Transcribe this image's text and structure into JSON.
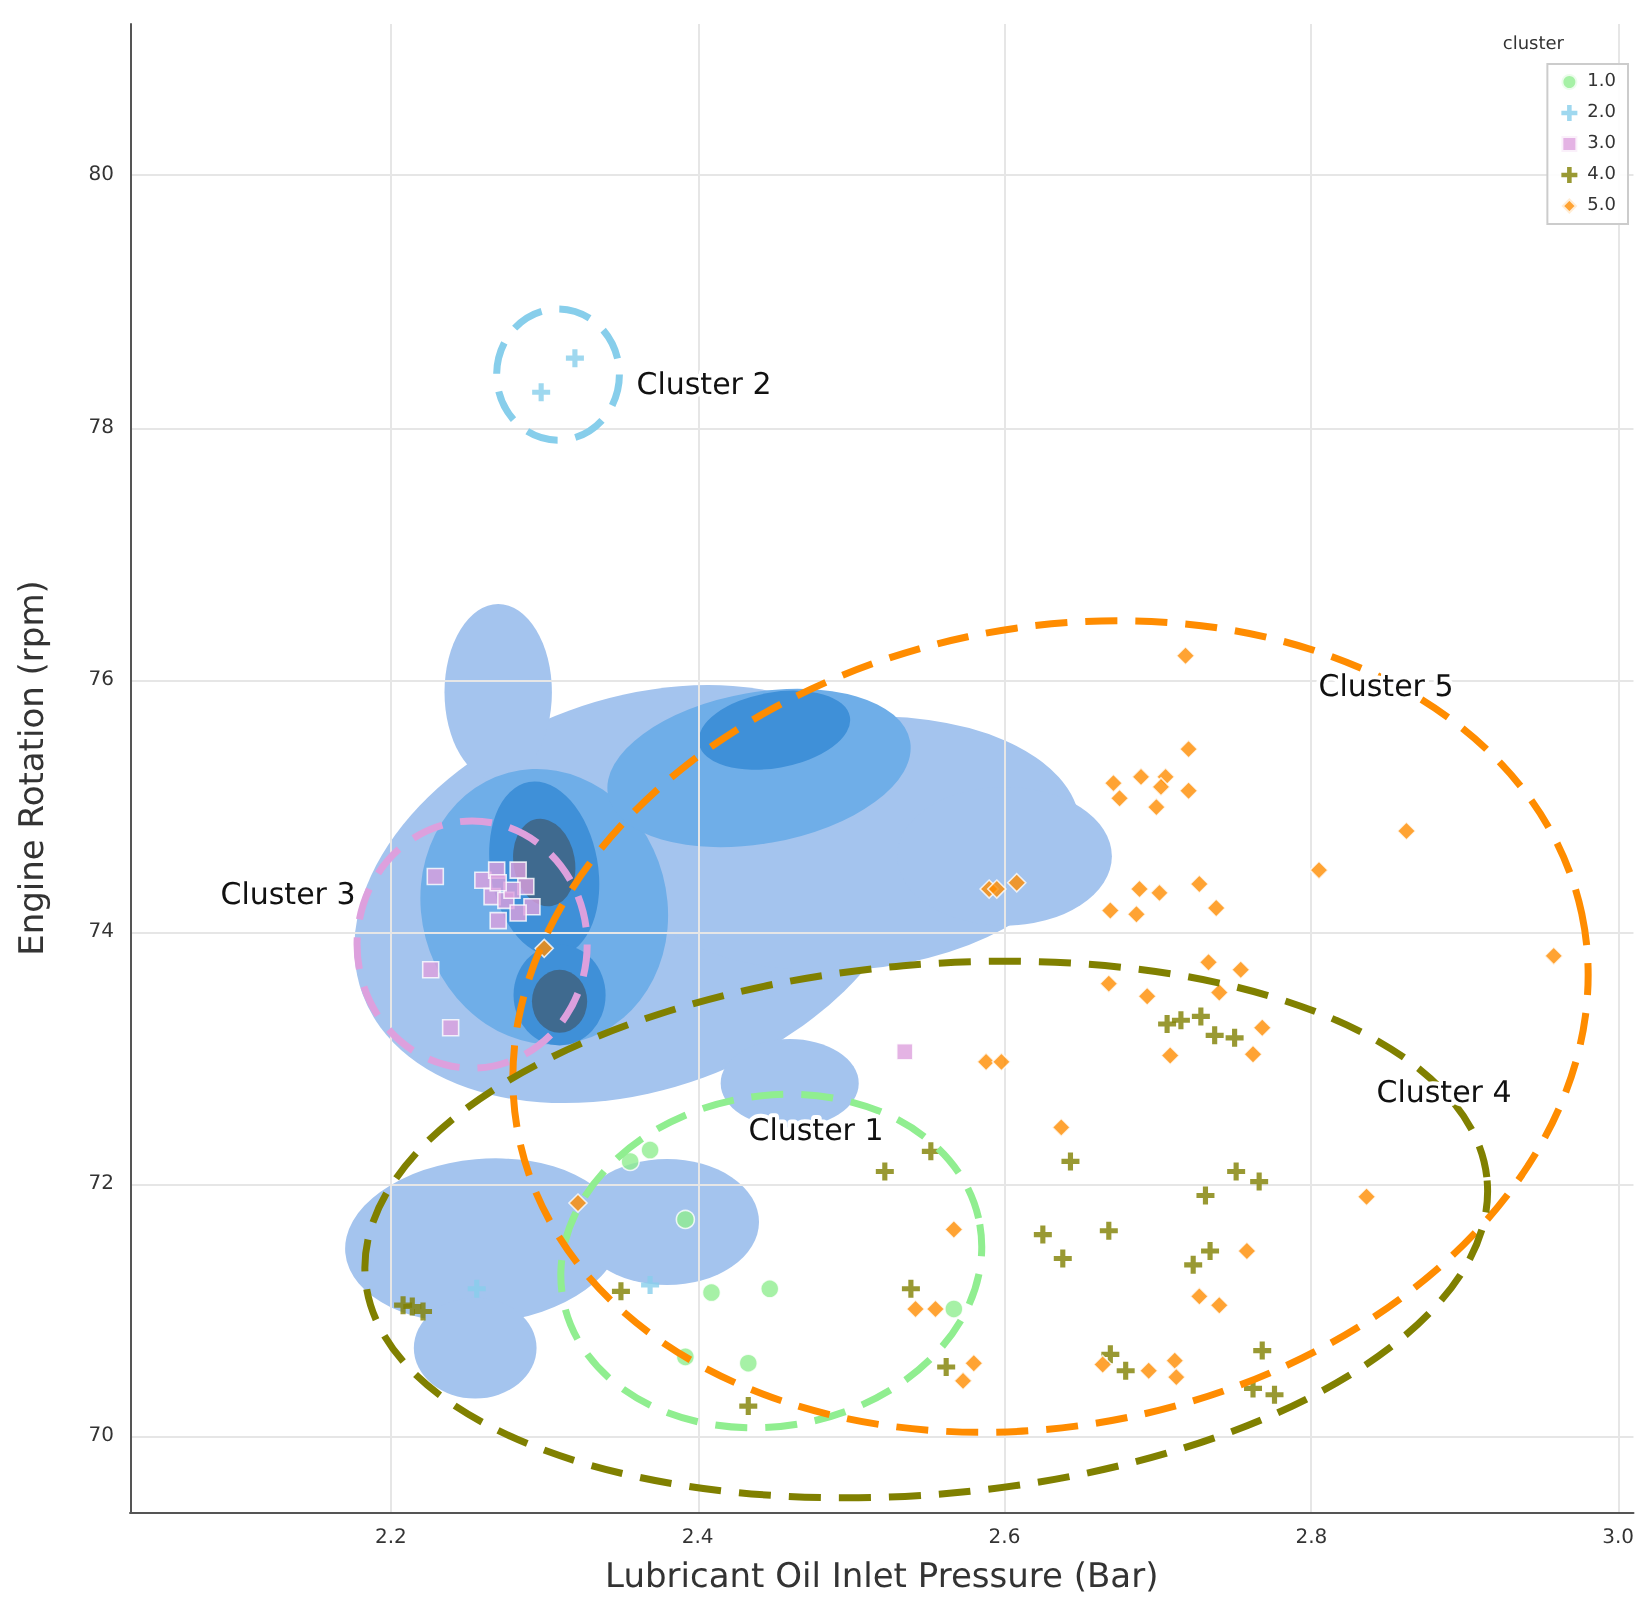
{
  "chart_data": {
    "type": "scatter",
    "xlabel": "Lubricant Oil Inlet Pressure (Bar)",
    "ylabel": "Engine Rotation (rpm)",
    "legend_title": "cluster",
    "xlim": [
      2.03,
      3.01
    ],
    "xticks": [
      2.2,
      2.4,
      2.6,
      2.8,
      {
        "value": 3.0,
        "label": "3.0"
      }
    ],
    "ylim": [
      69.4,
      81.2
    ],
    "yticks": [
      70,
      72,
      74,
      76,
      78,
      80
    ],
    "grid": true,
    "legend": "top right",
    "annotations": [
      "Cluster 2",
      "Cluster 5",
      "Cluster 3",
      "Cluster 1",
      "Cluster 4"
    ],
    "series": [
      {
        "name": "1.0",
        "color": "#90ee90",
        "marker": "circle",
        "x": [
          2.356,
          2.369,
          2.392,
          2.409,
          2.447,
          2.392,
          2.433,
          2.567
        ],
        "values": [
          72.18,
          72.27,
          71.72,
          71.14,
          71.17,
          70.63,
          70.58,
          71.01
        ]
      },
      {
        "name": "2.0",
        "color": "#87ceeb",
        "marker": "cross",
        "x": [
          2.298,
          2.32,
          2.256,
          2.369
        ],
        "values": [
          78.28,
          78.55,
          71.17,
          71.2
        ]
      },
      {
        "name": "3.0",
        "color": "#dda0dd",
        "marker": "square",
        "x": [
          2.229,
          2.226,
          2.239,
          2.535,
          2.26,
          2.269,
          2.278,
          2.283,
          2.266,
          2.275,
          2.288,
          2.292,
          2.27,
          2.279,
          2.283,
          2.27
        ],
        "values": [
          74.44,
          73.7,
          73.24,
          73.05,
          74.41,
          74.49,
          null,
          74.49,
          74.28,
          74.25,
          74.36,
          74.2,
          74.09,
          74.33,
          74.15,
          74.39
        ]
      },
      {
        "name": "4.0",
        "color": "#808000",
        "marker": "cross",
        "x": [
          2.552,
          2.522,
          2.643,
          2.751,
          2.766,
          2.731,
          2.625,
          2.638,
          2.668,
          2.734,
          2.723,
          2.539,
          2.768,
          2.562,
          2.669,
          2.679,
          2.762,
          2.776,
          2.706,
          2.715,
          2.728,
          2.737,
          2.75,
          2.214,
          2.208,
          2.221,
          2.35,
          2.433
        ],
        "values": [
          72.26,
          72.1,
          72.18,
          72.1,
          72.02,
          71.91,
          71.6,
          71.41,
          71.63,
          71.47,
          71.36,
          71.17,
          70.68,
          70.55,
          70.65,
          70.52,
          70.38,
          70.33,
          73.27,
          73.3,
          73.33,
          73.18,
          73.16,
          71.03,
          71.04,
          70.99,
          71.15,
          70.24
        ]
      },
      {
        "name": "5.0",
        "color": "#ff8c00",
        "marker": "diamond",
        "x": [
          2.718,
          2.72,
          2.671,
          2.689,
          2.705,
          2.675,
          2.699,
          2.72,
          2.702,
          2.862,
          2.805,
          2.59,
          2.595,
          2.608,
          2.688,
          2.701,
          2.727,
          2.738,
          2.669,
          2.686,
          2.958,
          2.733,
          2.754,
          2.668,
          2.693,
          2.74,
          2.768,
          2.708,
          2.762,
          2.588,
          2.598,
          2.637,
          2.567,
          2.836,
          2.758,
          2.727,
          2.74,
          2.542,
          2.555,
          2.58,
          2.573,
          2.664,
          2.694,
          2.711,
          2.712,
          2.3,
          2.322
        ],
        "values": [
          76.19,
          75.45,
          75.18,
          75.23,
          75.23,
          75.06,
          74.99,
          75.12,
          75.15,
          74.8,
          74.49,
          74.34,
          74.34,
          74.39,
          74.34,
          74.31,
          74.38,
          74.19,
          74.17,
          74.14,
          73.81,
          73.76,
          73.7,
          73.59,
          73.49,
          73.52,
          73.24,
          73.02,
          73.03,
          72.97,
          72.97,
          72.45,
          71.64,
          71.9,
          71.47,
          71.11,
          71.04,
          71.01,
          71.01,
          70.58,
          70.44,
          70.57,
          70.52,
          70.6,
          70.47,
          73.87,
          71.85
        ]
      }
    ]
  }
}
